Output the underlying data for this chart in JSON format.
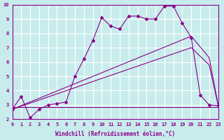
{
  "xlabel": "Windchill (Refroidissement éolien,°C)",
  "bg_color": "#c8ecec",
  "line_color": "#8b008b",
  "grid_color": "#ffffff",
  "xlim": [
    0,
    23
  ],
  "ylim": [
    2,
    10
  ],
  "xticks": [
    0,
    1,
    2,
    3,
    4,
    5,
    6,
    7,
    8,
    9,
    10,
    11,
    12,
    13,
    14,
    15,
    16,
    17,
    18,
    19,
    20,
    21,
    22,
    23
  ],
  "yticks": [
    2,
    3,
    4,
    5,
    6,
    7,
    8,
    9,
    10
  ],
  "series1_x": [
    0,
    1,
    2,
    3,
    4,
    5,
    6,
    7,
    8,
    9,
    10,
    11,
    12,
    13,
    14,
    15,
    16,
    17,
    18,
    19,
    20,
    21,
    22,
    23
  ],
  "series1_y": [
    2.7,
    3.6,
    2.1,
    2.7,
    3.0,
    3.1,
    3.2,
    5.0,
    6.2,
    7.5,
    9.1,
    8.5,
    8.3,
    9.2,
    9.2,
    9.0,
    9.0,
    9.9,
    9.9,
    8.7,
    7.7,
    3.7,
    3.0,
    2.95
  ],
  "series2_x": [
    0,
    20,
    22,
    23
  ],
  "series2_y": [
    2.7,
    7.0,
    5.8,
    3.0
  ],
  "series3_x": [
    0,
    20,
    22,
    23
  ],
  "series3_y": [
    2.7,
    7.8,
    6.3,
    3.0
  ],
  "series4_x": [
    0,
    6,
    23
  ],
  "series4_y": [
    2.85,
    2.85,
    2.85
  ]
}
